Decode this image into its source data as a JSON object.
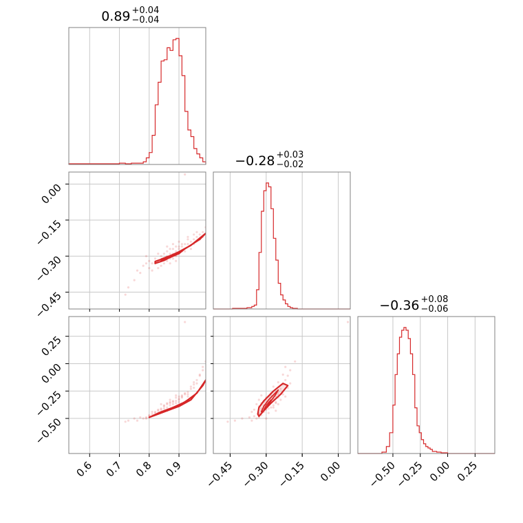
{
  "chart_data": {
    "type": "corner",
    "colors": {
      "accent": "#d62728",
      "grid": "#c8c8c8",
      "frame": "#808080"
    },
    "grid": true,
    "parameters": [
      {
        "title_value": "0.89",
        "title_plus": "+0.04",
        "title_minus": "−0.04",
        "range": [
          0.53,
          0.99
        ],
        "ticks": [
          0.6,
          0.7,
          0.8,
          0.9
        ],
        "tick_labels": [
          "0.6",
          "0.7",
          "0.8",
          "0.9"
        ],
        "histogram": {
          "bin_edges": [
            0.53,
            0.7,
            0.72,
            0.74,
            0.76,
            0.78,
            0.79,
            0.8,
            0.81,
            0.82,
            0.83,
            0.84,
            0.85,
            0.86,
            0.87,
            0.88,
            0.89,
            0.9,
            0.91,
            0.92,
            0.93,
            0.94,
            0.95,
            0.96,
            0.97,
            0.98,
            0.99
          ],
          "counts": [
            0.005,
            0.01,
            0.005,
            0.01,
            0.01,
            0.02,
            0.05,
            0.09,
            0.22,
            0.45,
            0.62,
            0.78,
            0.79,
            0.88,
            0.86,
            0.94,
            0.95,
            0.82,
            0.67,
            0.4,
            0.26,
            0.21,
            0.12,
            0.08,
            0.05,
            0.02
          ]
        }
      },
      {
        "title_value": "−0.28",
        "title_plus": "+0.03",
        "title_minus": "−0.02",
        "range": [
          -0.52,
          0.05
        ],
        "ticks": [
          -0.45,
          -0.3,
          -0.15,
          0.0
        ],
        "tick_labels": [
          "−0.45",
          "−0.30",
          "−0.15",
          "0.00"
        ],
        "histogram": {
          "bin_edges": [
            -0.52,
            -0.44,
            -0.41,
            -0.38,
            -0.36,
            -0.35,
            -0.34,
            -0.33,
            -0.32,
            -0.31,
            -0.3,
            -0.29,
            -0.28,
            -0.27,
            -0.26,
            -0.25,
            -0.24,
            -0.23,
            -0.22,
            -0.21,
            -0.2,
            -0.19,
            -0.17,
            0.05
          ],
          "counts": [
            0.0,
            0.005,
            0.005,
            0.01,
            0.02,
            0.03,
            0.15,
            0.44,
            0.76,
            0.92,
            0.98,
            0.95,
            0.78,
            0.55,
            0.38,
            0.2,
            0.11,
            0.07,
            0.04,
            0.02,
            0.01,
            0.005,
            0.0
          ]
        }
      },
      {
        "title_value": "−0.36",
        "title_plus": "+0.08",
        "title_minus": "−0.06",
        "range": [
          -0.82,
          0.43
        ],
        "ticks": [
          -0.5,
          -0.25,
          0.0,
          0.25
        ],
        "tick_labels": [
          "−0.50",
          "−0.25",
          "0.00",
          "0.25"
        ],
        "histogram": {
          "bin_edges": [
            -0.82,
            -0.6,
            -0.56,
            -0.53,
            -0.5,
            -0.48,
            -0.46,
            -0.44,
            -0.42,
            -0.4,
            -0.38,
            -0.36,
            -0.34,
            -0.32,
            -0.3,
            -0.28,
            -0.26,
            -0.24,
            -0.22,
            -0.2,
            -0.18,
            -0.16,
            -0.14,
            -0.1,
            -0.06,
            0.0,
            0.43
          ],
          "counts": [
            0.0,
            0.01,
            0.05,
            0.15,
            0.35,
            0.57,
            0.72,
            0.84,
            0.89,
            0.91,
            0.89,
            0.83,
            0.72,
            0.57,
            0.33,
            0.2,
            0.15,
            0.1,
            0.07,
            0.05,
            0.04,
            0.03,
            0.015,
            0.01,
            0.005,
            0.0
          ]
        }
      }
    ],
    "scatter_samples": [
      [
        0.85,
        -0.31,
        -0.38
      ],
      [
        0.86,
        -0.3,
        -0.37
      ],
      [
        0.87,
        -0.29,
        -0.36
      ],
      [
        0.88,
        -0.29,
        -0.35
      ],
      [
        0.89,
        -0.28,
        -0.34
      ],
      [
        0.9,
        -0.27,
        -0.32
      ],
      [
        0.91,
        -0.26,
        -0.3
      ],
      [
        0.92,
        -0.25,
        -0.28
      ],
      [
        0.93,
        -0.25,
        -0.26
      ],
      [
        0.94,
        -0.24,
        -0.23
      ],
      [
        0.95,
        -0.23,
        -0.19
      ],
      [
        0.96,
        -0.22,
        -0.15
      ],
      [
        0.97,
        -0.21,
        -0.11
      ],
      [
        0.98,
        -0.2,
        -0.06
      ],
      [
        0.84,
        -0.32,
        -0.41
      ],
      [
        0.83,
        -0.32,
        -0.43
      ],
      [
        0.82,
        -0.33,
        -0.45
      ],
      [
        0.81,
        -0.33,
        -0.46
      ],
      [
        0.8,
        -0.32,
        -0.47
      ],
      [
        0.79,
        -0.33,
        -0.49
      ],
      [
        0.78,
        -0.34,
        -0.5
      ],
      [
        0.76,
        -0.36,
        -0.52
      ],
      [
        0.73,
        -0.43,
        -0.52
      ],
      [
        0.72,
        -0.46,
        -0.53
      ],
      [
        0.85,
        -0.33,
        -0.39
      ],
      [
        0.86,
        -0.32,
        -0.36
      ],
      [
        0.88,
        -0.31,
        -0.34
      ],
      [
        0.87,
        -0.27,
        -0.38
      ],
      [
        0.89,
        -0.26,
        -0.36
      ],
      [
        0.9,
        -0.29,
        -0.3
      ],
      [
        0.91,
        -0.28,
        -0.29
      ],
      [
        0.84,
        -0.3,
        -0.42
      ],
      [
        0.82,
        -0.31,
        -0.44
      ],
      [
        0.92,
        -0.28,
        -0.27
      ],
      [
        0.93,
        -0.23,
        -0.28
      ],
      [
        0.95,
        -0.25,
        -0.17
      ],
      [
        0.97,
        -0.23,
        -0.1
      ],
      [
        0.8,
        -0.35,
        -0.48
      ],
      [
        0.79,
        -0.3,
        -0.5
      ],
      [
        0.83,
        -0.35,
        -0.42
      ],
      [
        0.87,
        -0.33,
        -0.33
      ],
      [
        0.88,
        -0.25,
        -0.37
      ],
      [
        0.9,
        -0.24,
        -0.33
      ],
      [
        0.94,
        -0.27,
        -0.21
      ],
      [
        0.96,
        -0.2,
        -0.18
      ],
      [
        0.98,
        -0.22,
        -0.03
      ],
      [
        0.86,
        -0.28,
        -0.4
      ],
      [
        0.85,
        -0.29,
        -0.41
      ],
      [
        0.89,
        -0.3,
        -0.31
      ],
      [
        0.91,
        -0.25,
        -0.31
      ],
      [
        0.81,
        -0.36,
        -0.44
      ],
      [
        0.83,
        -0.29,
        -0.45
      ],
      [
        0.75,
        -0.4,
        -0.5
      ],
      [
        0.77,
        -0.37,
        -0.49
      ],
      [
        0.99,
        -0.18,
        0.02
      ],
      [
        0.92,
        0.04,
        0.38
      ],
      [
        0.93,
        -0.22,
        -0.3
      ],
      [
        0.95,
        -0.21,
        -0.22
      ],
      [
        0.84,
        -0.34,
        -0.37
      ],
      [
        0.86,
        -0.26,
        -0.43
      ],
      [
        0.88,
        -0.27,
        -0.4
      ],
      [
        0.9,
        -0.26,
        -0.35
      ],
      [
        0.87,
        -0.31,
        -0.35
      ],
      [
        0.89,
        -0.32,
        -0.29
      ]
    ],
    "contours": {
      "pair_1_0": [
        [
          [
            0.82,
            -0.322
          ],
          [
            0.86,
            -0.305
          ],
          [
            0.9,
            -0.282
          ],
          [
            0.94,
            -0.255
          ],
          [
            0.98,
            -0.215
          ],
          [
            0.99,
            -0.205
          ],
          [
            0.97,
            -0.23
          ],
          [
            0.93,
            -0.262
          ],
          [
            0.89,
            -0.292
          ],
          [
            0.85,
            -0.318
          ],
          [
            0.82,
            -0.33
          ],
          [
            0.82,
            -0.322
          ]
        ],
        [
          [
            0.84,
            -0.312
          ],
          [
            0.87,
            -0.298
          ],
          [
            0.9,
            -0.283
          ],
          [
            0.92,
            -0.27
          ],
          [
            0.9,
            -0.29
          ],
          [
            0.87,
            -0.306
          ],
          [
            0.84,
            -0.318
          ],
          [
            0.84,
            -0.312
          ]
        ],
        [
          [
            0.87,
            -0.298
          ],
          [
            0.89,
            -0.288
          ],
          [
            0.91,
            -0.278
          ],
          [
            0.89,
            -0.294
          ],
          [
            0.87,
            -0.304
          ],
          [
            0.87,
            -0.298
          ]
        ]
      ],
      "pair_2_0": [
        [
          [
            0.8,
            -0.49
          ],
          [
            0.84,
            -0.44
          ],
          [
            0.88,
            -0.4
          ],
          [
            0.92,
            -0.35
          ],
          [
            0.96,
            -0.27
          ],
          [
            0.99,
            -0.15
          ],
          [
            0.98,
            -0.2
          ],
          [
            0.94,
            -0.33
          ],
          [
            0.9,
            -0.39
          ],
          [
            0.86,
            -0.43
          ],
          [
            0.82,
            -0.47
          ],
          [
            0.8,
            -0.49
          ]
        ],
        [
          [
            0.83,
            -0.46
          ],
          [
            0.87,
            -0.42
          ],
          [
            0.91,
            -0.37
          ],
          [
            0.93,
            -0.33
          ],
          [
            0.9,
            -0.38
          ],
          [
            0.86,
            -0.43
          ],
          [
            0.83,
            -0.46
          ]
        ],
        [
          [
            0.86,
            -0.42
          ],
          [
            0.89,
            -0.39
          ],
          [
            0.91,
            -0.36
          ],
          [
            0.89,
            -0.4
          ],
          [
            0.86,
            -0.42
          ]
        ]
      ],
      "pair_2_1": [
        [
          [
            -0.335,
            -0.46
          ],
          [
            -0.33,
            -0.4
          ],
          [
            -0.31,
            -0.34
          ],
          [
            -0.27,
            -0.25
          ],
          [
            -0.23,
            -0.18
          ],
          [
            -0.21,
            -0.2
          ],
          [
            -0.24,
            -0.28
          ],
          [
            -0.28,
            -0.36
          ],
          [
            -0.31,
            -0.43
          ],
          [
            -0.33,
            -0.48
          ],
          [
            -0.335,
            -0.46
          ]
        ],
        [
          [
            -0.32,
            -0.44
          ],
          [
            -0.31,
            -0.39
          ],
          [
            -0.29,
            -0.33
          ],
          [
            -0.25,
            -0.24
          ],
          [
            -0.26,
            -0.28
          ],
          [
            -0.29,
            -0.37
          ],
          [
            -0.31,
            -0.43
          ],
          [
            -0.32,
            -0.44
          ]
        ],
        [
          [
            -0.31,
            -0.42
          ],
          [
            -0.3,
            -0.38
          ],
          [
            -0.28,
            -0.33
          ],
          [
            -0.29,
            -0.38
          ],
          [
            -0.31,
            -0.42
          ]
        ]
      ]
    }
  }
}
